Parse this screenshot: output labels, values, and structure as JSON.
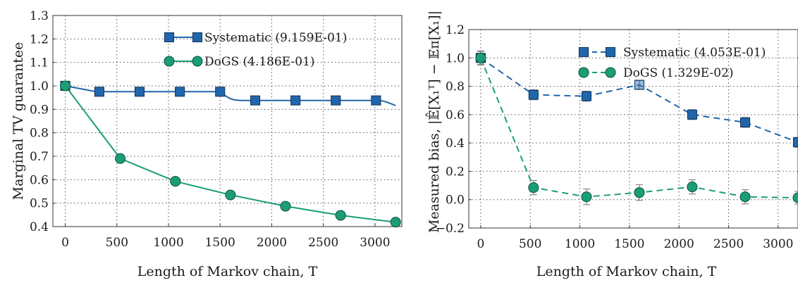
{
  "chart_data": [
    {
      "type": "line",
      "xlabel": "Length of Markov chain, T",
      "ylabel": "Marginal TV guarantee",
      "xlim": [
        -120,
        3260
      ],
      "ylim": [
        0.4,
        1.3
      ],
      "xticks": [
        "0",
        "500",
        "1000",
        "1500",
        "2000",
        "2500",
        "3000"
      ],
      "yticks": [
        "0.4",
        "0.5",
        "0.6",
        "0.7",
        "0.8",
        "0.9",
        "1.0",
        "1.1",
        "1.2",
        "1.3"
      ],
      "grid": true,
      "legend_position": "top-right",
      "series": [
        {
          "name": "Systematic (9.159E-01)",
          "color": "#2166ac",
          "marker": "square",
          "line": "solid",
          "x": [
            0,
            300,
            1500,
            1520,
            1560,
            1600,
            1640,
            1700,
            3050,
            3080,
            3120,
            3160,
            3200
          ],
          "y": [
            1.0,
            0.975,
            0.975,
            0.968,
            0.955,
            0.945,
            0.94,
            0.938,
            0.938,
            0.935,
            0.93,
            0.923,
            0.916
          ],
          "markers_x": [
            0,
            330,
            720,
            1110,
            1500,
            1840,
            2230,
            2620,
            3010
          ],
          "markers_y": [
            1.0,
            0.975,
            0.975,
            0.975,
            0.975,
            0.938,
            0.938,
            0.938,
            0.938
          ]
        },
        {
          "name": "DoGS (4.186E-01)",
          "color": "#1b9e77",
          "marker": "circle",
          "line": "solid",
          "x": [
            0,
            533,
            1067,
            1600,
            2133,
            2667,
            3200
          ],
          "y": [
            1.0,
            0.69,
            0.593,
            0.535,
            0.487,
            0.448,
            0.419
          ],
          "markers_x": [
            0,
            533,
            1067,
            1600,
            2133,
            2667,
            3200
          ],
          "markers_y": [
            1.0,
            0.69,
            0.593,
            0.535,
            0.487,
            0.448,
            0.419
          ]
        }
      ]
    },
    {
      "type": "line",
      "xlabel": "Length of Markov chain, T",
      "ylabel": "Measured bias, |𝔼̂[X₁ᵀ] − 𝔼π[X₁]|",
      "xlim": [
        -120,
        3200
      ],
      "ylim": [
        -0.2,
        1.2
      ],
      "xticks": [
        "0",
        "500",
        "1000",
        "1500",
        "2000",
        "2500",
        "3000"
      ],
      "yticks": [
        "−0.2",
        "0.0",
        "0.2",
        "0.4",
        "0.6",
        "0.8",
        "1.0",
        "1.2"
      ],
      "grid": true,
      "legend_position": "top-right",
      "series": [
        {
          "name": "Systematic (4.053E-01)",
          "color": "#2166ac",
          "marker": "square",
          "line": "dashed",
          "x": [
            0,
            533,
            1067,
            1600,
            2133,
            2667,
            3200
          ],
          "y": [
            1.0,
            0.74,
            0.73,
            0.81,
            0.6,
            0.545,
            0.405
          ],
          "err": [
            0.045,
            0.035,
            0.035,
            0.03,
            0.035,
            0.035,
            0.035
          ]
        },
        {
          "name": "DoGS (1.329E-02)",
          "color": "#1b9e77",
          "marker": "circle",
          "line": "dashed",
          "x": [
            0,
            533,
            1067,
            1600,
            2133,
            2667,
            3200
          ],
          "y": [
            1.0,
            0.085,
            0.02,
            0.05,
            0.09,
            0.02,
            0.013
          ],
          "err": [
            0.05,
            0.05,
            0.055,
            0.055,
            0.05,
            0.05,
            0.045
          ]
        }
      ]
    }
  ]
}
